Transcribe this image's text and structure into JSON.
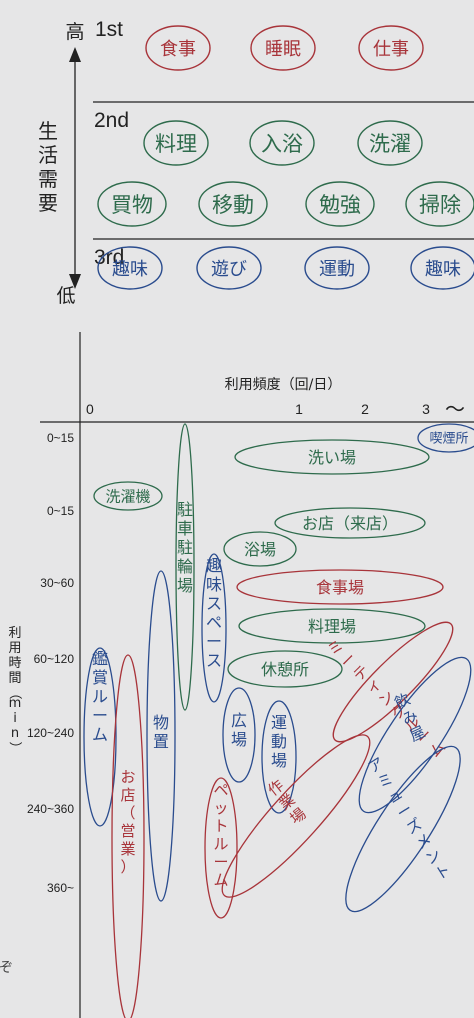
{
  "needs": {
    "axis_label": "生活需要",
    "high_label": "高",
    "low_label": "低",
    "tiers": [
      {
        "label": "1st",
        "color": "#a8343a",
        "items": [
          "食事",
          "睡眠",
          "仕事"
        ]
      },
      {
        "label": "2nd",
        "color": "#2e6b4c",
        "items": [
          "料理",
          "入浴",
          "洗濯",
          "買物",
          "移動",
          "勉強",
          "掃除"
        ]
      },
      {
        "label": "3rd",
        "color": "#2a4c8e",
        "items": [
          "趣味",
          "遊び",
          "運動",
          "趣味"
        ]
      }
    ]
  },
  "chart": {
    "x_axis_label": "利用頻度（回/日）",
    "x_ticks": [
      "0",
      "1",
      "2",
      "3"
    ],
    "x_tilde": "～",
    "y_axis_label": "利用時間（min）",
    "y_ticks": [
      "0~15",
      "0~15",
      "30~60",
      "60~120",
      "120~240",
      "240~360",
      "360~"
    ],
    "bubbles": [
      {
        "text": "喫煙所",
        "color": "#2a4c8e"
      },
      {
        "text": "洗い場",
        "color": "#2e6b4c"
      },
      {
        "text": "洗濯機",
        "color": "#2e6b4c"
      },
      {
        "text": "駐車駐輪場",
        "color": "#2e6b4c"
      },
      {
        "text": "お店（来店）",
        "color": "#2e6b4c"
      },
      {
        "text": "浴場",
        "color": "#2e6b4c"
      },
      {
        "text": "趣味スペース",
        "color": "#2a4c8e"
      },
      {
        "text": "食事場",
        "color": "#a8343a"
      },
      {
        "text": "料理場",
        "color": "#2e6b4c"
      },
      {
        "text": "休憩所",
        "color": "#2e6b4c"
      },
      {
        "text": "ミーティングルーム",
        "color": "#a8343a"
      },
      {
        "text": "鑑賞ルーム",
        "color": "#2a4c8e"
      },
      {
        "text": "物置",
        "color": "#2a4c8e"
      },
      {
        "text": "広場",
        "color": "#2a4c8e"
      },
      {
        "text": "運動場",
        "color": "#2a4c8e"
      },
      {
        "text": "飲み屋",
        "color": "#2a4c8e"
      },
      {
        "text": "お店（営業）",
        "color": "#a8343a"
      },
      {
        "text": "ペットルーム",
        "color": "#a8343a"
      },
      {
        "text": "作業場",
        "color": "#a8343a"
      },
      {
        "text": "アミューズメント",
        "color": "#2a4c8e"
      }
    ]
  }
}
